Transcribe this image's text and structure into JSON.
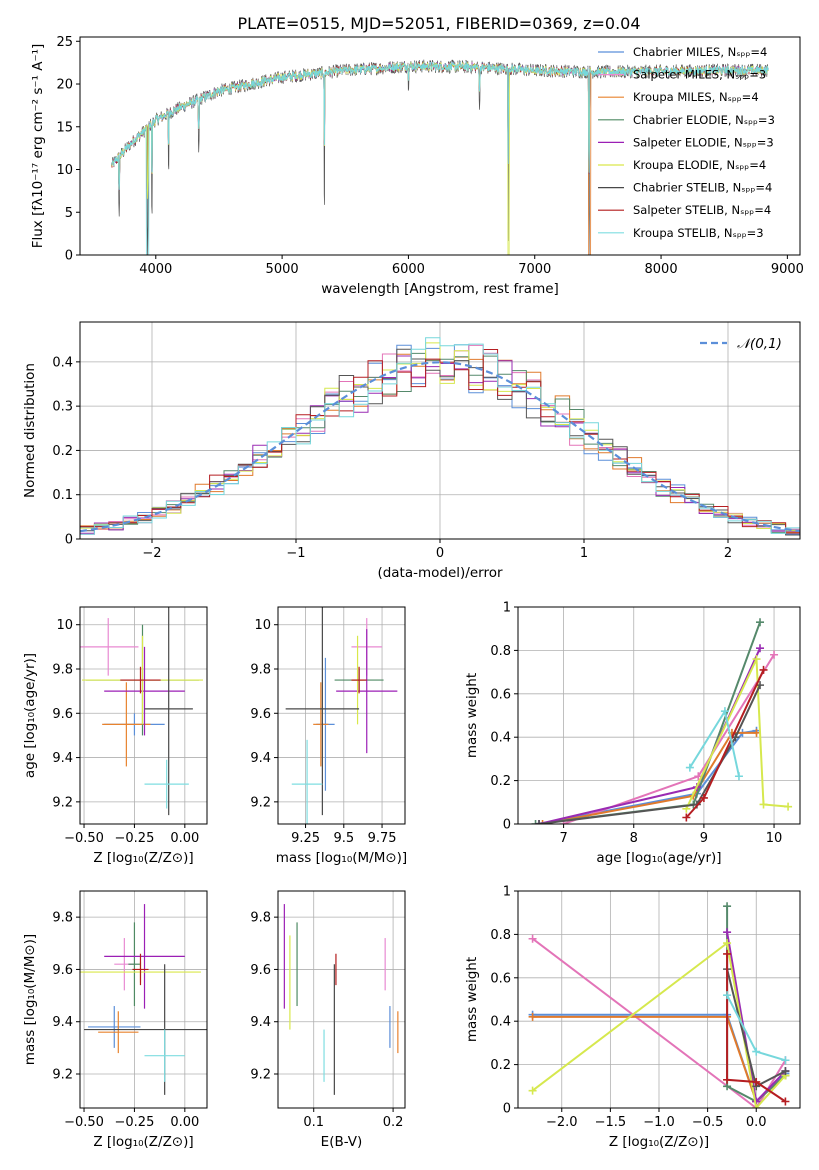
{
  "colors": {
    "chabrier_miles": "#5b8fd9",
    "salpeter_miles": "#e88ad2",
    "kroupa_miles": "#e8832e",
    "chabrier_elodie": "#4f8a63",
    "salpeter_elodie": "#9b1fb5",
    "kroupa_elodie": "#d9e84a",
    "chabrier_stelib": "#484848",
    "salpeter_stelib": "#b31b1b",
    "kroupa_stelib": "#7fdde0",
    "normal": "#5b8fd9",
    "line_chabrier_miles": "#5b8fd9",
    "line_salpeter_miles": "#e374b8",
    "line_kroupa_miles": "#e07a2c",
    "line_chabrier_elodie": "#55896b",
    "line_salpeter_elodie": "#9a2bb3",
    "line_kroupa_elodie": "#d6e84e",
    "line_chabrier_stelib": "#555555",
    "line_salpeter_stelib": "#b51e22",
    "line_kroupa_stelib": "#76d7dc"
  },
  "chart_data": [
    {
      "type": "line",
      "title": "PLATE=0515, MJD=52051, FIBERID=0369, z=0.04",
      "xlabel": "wavelength [Angstrom, rest frame]",
      "ylabel": "Flux [fλ10⁻¹⁷ erg cm⁻² s⁻¹ A⁻¹]",
      "xlim": [
        3400,
        9100
      ],
      "ylim": [
        0,
        25.5
      ],
      "xticks": [
        4000,
        5000,
        6000,
        7000,
        8000,
        9000
      ],
      "yticks": [
        0,
        5,
        10,
        15,
        20,
        25
      ],
      "legend_placement": "upper-right",
      "legend": [
        "Chabrier MILES, Nₛₚₚ=4",
        "Salpeter MILES, Nₛₚₚ=3",
        "Kroupa MILES, Nₛₚₚ=4",
        "Chabrier ELODIE, Nₛₚₚ=3",
        "Salpeter ELODIE, Nₛₚₚ=3",
        "Kroupa ELODIE, Nₛₚₚ=4",
        "Chabrier STELIB, Nₛₚₚ=4",
        "Salpeter STELIB, Nₛₚₚ=4",
        "Kroupa STELIB, Nₛₚₚ=3"
      ],
      "continuum": {
        "x": [
          3650,
          3800,
          4000,
          4200,
          4500,
          5000,
          5500,
          6000,
          6500,
          7000,
          7500,
          8000,
          8500,
          8850
        ],
        "y": [
          10.5,
          13.0,
          15.8,
          17.3,
          19.2,
          20.8,
          21.6,
          22.1,
          22.0,
          21.6,
          21.4,
          21.5,
          21.6,
          21.6
        ]
      },
      "features": [
        {
          "x": 3935,
          "y": 0.0
        },
        {
          "x": 3970,
          "y": 4.0
        },
        {
          "x": 3710,
          "y": 4.5
        },
        {
          "x": 4102,
          "y": 9.5
        },
        {
          "x": 4340,
          "y": 12.0
        },
        {
          "x": 5335,
          "y": 4.6
        },
        {
          "x": 6000,
          "y": 19.0
        },
        {
          "x": 6563,
          "y": 17.0
        },
        {
          "x": 6790,
          "y": 0.0
        },
        {
          "x": 7430,
          "y": 0.0
        }
      ]
    },
    {
      "type": "line",
      "xlabel": "(data-model)/error",
      "ylabel": "Normed distribution",
      "xlim": [
        -2.5,
        2.5
      ],
      "ylim": [
        0,
        0.49
      ],
      "xticks": [
        -2,
        -1,
        0,
        1,
        2
      ],
      "yticks": [
        0.0,
        0.1,
        0.2,
        0.3,
        0.4
      ],
      "grid": true,
      "legend_placement": "upper-right",
      "legend": [
        "𝒩(0,1)"
      ],
      "normal": {
        "mean": 0,
        "sigma": 1
      },
      "bin_width": 0.1
    },
    {
      "type": "scatter",
      "xlabel": "Z [log₁₀(Z/Z⊙)]",
      "ylabel": "age  [log₁₀(age/yr)]",
      "xlim": [
        -0.52,
        0.11
      ],
      "ylim": [
        9.1,
        10.08
      ],
      "xticks": [
        -0.5,
        -0.25,
        0.0
      ],
      "xticklabels": [
        "−0.50",
        "−0.25",
        "0.00"
      ],
      "yticks": [
        9.2,
        9.4,
        9.6,
        9.8,
        10.0
      ],
      "grid": true,
      "points": [
        {
          "series": "chabrier_miles",
          "x": -0.25,
          "xerr": 0.15,
          "y": 9.55,
          "yerr": 0.05
        },
        {
          "series": "salpeter_miles",
          "x": -0.38,
          "xerr": 0.15,
          "y": 9.9,
          "yerr": 0.13
        },
        {
          "series": "kroupa_miles",
          "x": -0.29,
          "xerr": 0.12,
          "y": 9.55,
          "yerr": 0.19
        },
        {
          "series": "chabrier_elodie",
          "x": -0.21,
          "xerr": 0.28,
          "y": 9.75,
          "yerr": 0.25
        },
        {
          "series": "salpeter_elodie",
          "x": -0.2,
          "xerr": 0.2,
          "y": 9.7,
          "yerr": 0.2
        },
        {
          "series": "kroupa_elodie",
          "x": -0.21,
          "xerr": 0.3,
          "y": 9.75,
          "yerr": 0.2
        },
        {
          "series": "chabrier_stelib",
          "x": -0.08,
          "xerr": 0.12,
          "y": 9.62,
          "yerr": 0.48
        },
        {
          "series": "salpeter_stelib",
          "x": -0.22,
          "xerr": 0.1,
          "y": 9.75,
          "yerr": 0.06
        },
        {
          "series": "kroupa_stelib",
          "x": -0.09,
          "xerr": 0.11,
          "y": 9.28,
          "yerr": 0.11
        }
      ]
    },
    {
      "type": "scatter",
      "xlabel": "mass [log₁₀(M/M⊙)]",
      "xlim": [
        9.07,
        9.9
      ],
      "ylim": [
        9.1,
        10.08
      ],
      "xticks": [
        9.25,
        9.5,
        9.75
      ],
      "yticks": [
        9.2,
        9.4,
        9.6,
        9.8,
        10.0
      ],
      "grid": true,
      "points": [
        {
          "series": "chabrier_miles",
          "x": 9.38,
          "xerr": 0.06,
          "y": 9.55,
          "yerr": 0.3
        },
        {
          "series": "salpeter_miles",
          "x": 9.65,
          "xerr": 0.1,
          "y": 9.9,
          "yerr": 0.13
        },
        {
          "series": "kroupa_miles",
          "x": 9.35,
          "xerr": 0.05,
          "y": 9.55,
          "yerr": 0.19
        },
        {
          "series": "chabrier_elodie",
          "x": 9.6,
          "xerr": 0.16,
          "y": 9.75,
          "yerr": 0.05
        },
        {
          "series": "salpeter_elodie",
          "x": 9.65,
          "xerr": 0.2,
          "y": 9.7,
          "yerr": 0.28
        },
        {
          "series": "kroupa_elodie",
          "x": 9.59,
          "xerr": 0.04,
          "y": 9.75,
          "yerr": 0.2
        },
        {
          "series": "chabrier_stelib",
          "x": 9.36,
          "xerr": 0.24,
          "y": 9.62,
          "yerr": 0.48
        },
        {
          "series": "salpeter_stelib",
          "x": 9.6,
          "xerr": 0.05,
          "y": 9.75,
          "yerr": 0.06
        },
        {
          "series": "kroupa_stelib",
          "x": 9.26,
          "xerr": 0.1,
          "y": 9.28,
          "yerr": 0.2
        }
      ]
    },
    {
      "type": "line",
      "xlabel": "age  [log₁₀(age/yr)]",
      "ylabel": "mass weight",
      "xlim": [
        6.35,
        10.37
      ],
      "ylim": [
        0,
        1.0
      ],
      "xticks": [
        7,
        8,
        9,
        10
      ],
      "yticks": [
        0.0,
        0.2,
        0.4,
        0.6,
        0.8,
        1.0
      ],
      "grid": true,
      "series": [
        {
          "key": "chabrier_miles",
          "x": [
            6.65,
            8.9,
            9.55,
            9.75
          ],
          "y": [
            0.0,
            0.14,
            0.42,
            0.43
          ]
        },
        {
          "key": "salpeter_miles",
          "x": [
            7.0,
            8.92,
            10.0
          ],
          "y": [
            0.0,
            0.22,
            0.78
          ]
        },
        {
          "key": "kroupa_miles",
          "x": [
            6.7,
            8.85,
            9.4,
            9.75
          ],
          "y": [
            0.0,
            0.13,
            0.42,
            0.42
          ]
        },
        {
          "key": "chabrier_elodie",
          "x": [
            6.6,
            8.85,
            9.8
          ],
          "y": [
            0.0,
            0.09,
            0.93
          ]
        },
        {
          "key": "salpeter_elodie",
          "x": [
            6.65,
            8.9,
            9.8
          ],
          "y": [
            0.0,
            0.17,
            0.81
          ]
        },
        {
          "key": "kroupa_elodie",
          "x": [
            8.75,
            9.75,
            9.85,
            10.2
          ],
          "y": [
            0.07,
            0.76,
            0.09,
            0.08
          ]
        },
        {
          "key": "chabrier_stelib",
          "x": [
            6.65,
            8.9,
            9.45,
            9.8
          ],
          "y": [
            0.0,
            0.09,
            0.4,
            0.64
          ]
        },
        {
          "key": "salpeter_stelib",
          "x": [
            8.75,
            9.0,
            9.85
          ],
          "y": [
            0.03,
            0.12,
            0.71
          ]
        },
        {
          "key": "kroupa_stelib",
          "x": [
            8.8,
            9.3,
            9.5
          ],
          "y": [
            0.26,
            0.52,
            0.22
          ]
        }
      ]
    },
    {
      "type": "scatter",
      "xlabel": "Z [log₁₀(Z/Z⊙)]",
      "ylabel": "mass [log₁₀(M/M⊙)]",
      "xlim": [
        -0.52,
        0.11
      ],
      "ylim": [
        9.07,
        9.9
      ],
      "xticks": [
        -0.5,
        -0.25,
        0.0
      ],
      "xticklabels": [
        "−0.50",
        "−0.25",
        "0.00"
      ],
      "yticks": [
        9.2,
        9.4,
        9.6,
        9.8
      ],
      "grid": true,
      "points": [
        {
          "series": "chabrier_miles",
          "x": -0.35,
          "xerr": 0.13,
          "y": 9.38,
          "yerr": 0.08
        },
        {
          "series": "salpeter_miles",
          "x": -0.3,
          "xerr": 0.05,
          "y": 9.62,
          "yerr": 0.1
        },
        {
          "series": "kroupa_miles",
          "x": -0.33,
          "xerr": 0.1,
          "y": 9.36,
          "yerr": 0.08
        },
        {
          "series": "chabrier_elodie",
          "x": -0.25,
          "xerr": 0.03,
          "y": 9.62,
          "yerr": 0.16
        },
        {
          "series": "salpeter_elodie",
          "x": -0.2,
          "xerr": 0.2,
          "y": 9.65,
          "yerr": 0.2
        },
        {
          "series": "kroupa_elodie",
          "x": -0.22,
          "xerr": 0.3,
          "y": 9.59,
          "yerr": 0.04
        },
        {
          "series": "chabrier_stelib",
          "x": -0.1,
          "xerr": 0.4,
          "y": 9.37,
          "yerr": 0.25
        },
        {
          "series": "salpeter_stelib",
          "x": -0.22,
          "xerr": 0.04,
          "y": 9.6,
          "yerr": 0.06
        },
        {
          "series": "kroupa_stelib",
          "x": -0.1,
          "xerr": 0.1,
          "y": 9.27,
          "yerr": 0.1
        }
      ]
    },
    {
      "type": "scatter",
      "xlabel": "E(B-V)",
      "xlim": [
        0.055,
        0.215
      ],
      "ylim": [
        9.07,
        9.9
      ],
      "xticks": [
        0.1,
        0.2
      ],
      "yticks": [
        9.2,
        9.4,
        9.6,
        9.8
      ],
      "grid": true,
      "points": [
        {
          "series": "chabrier_miles",
          "x": 0.196,
          "y": 9.38,
          "yerr": 0.08
        },
        {
          "series": "salpeter_miles",
          "x": 0.19,
          "y": 9.62,
          "yerr": 0.1
        },
        {
          "series": "kroupa_miles",
          "x": 0.206,
          "y": 9.36,
          "yerr": 0.08
        },
        {
          "series": "chabrier_elodie",
          "x": 0.079,
          "y": 9.62,
          "yerr": 0.16
        },
        {
          "series": "salpeter_elodie",
          "x": 0.063,
          "y": 9.65,
          "yerr": 0.2
        },
        {
          "series": "kroupa_elodie",
          "x": 0.07,
          "y": 9.55,
          "yerr": 0.18
        },
        {
          "series": "chabrier_stelib",
          "x": 0.126,
          "y": 9.37,
          "yerr": 0.25
        },
        {
          "series": "salpeter_stelib",
          "x": 0.128,
          "y": 9.6,
          "yerr": 0.06
        },
        {
          "series": "kroupa_stelib",
          "x": 0.113,
          "y": 9.27,
          "yerr": 0.1
        }
      ]
    },
    {
      "type": "line",
      "xlabel": "Z [log₁₀(Z/Z⊙)]",
      "ylabel": "mass weight",
      "xlim": [
        -2.45,
        0.45
      ],
      "ylim": [
        0,
        1.0
      ],
      "xticks": [
        -2.0,
        -1.5,
        -1.0,
        -0.5,
        0.0
      ],
      "xticklabels": [
        "−2.0",
        "−1.5",
        "−1.0",
        "−0.5",
        "0.0"
      ],
      "yticks": [
        0.0,
        0.2,
        0.4,
        0.6,
        0.8,
        1.0
      ],
      "grid": true,
      "series": [
        {
          "key": "chabrier_miles",
          "x": [
            -2.3,
            -0.3,
            0.0,
            0.3
          ],
          "y": [
            0.43,
            0.43,
            0.03,
            0.16
          ]
        },
        {
          "key": "salpeter_miles",
          "x": [
            -2.3,
            0.0,
            0.3
          ],
          "y": [
            0.78,
            0.0,
            0.22
          ]
        },
        {
          "key": "kroupa_miles",
          "x": [
            -2.3,
            -0.3,
            0.0,
            0.3
          ],
          "y": [
            0.42,
            0.42,
            0.03,
            0.15
          ]
        },
        {
          "key": "chabrier_elodie",
          "x": [
            -0.3,
            -0.3,
            0.0,
            0.3
          ],
          "y": [
            0.93,
            0.1,
            0.03,
            0.15
          ]
        },
        {
          "key": "salpeter_elodie",
          "x": [
            -0.3,
            0.0,
            0.3
          ],
          "y": [
            0.81,
            0.03,
            0.17
          ]
        },
        {
          "key": "kroupa_elodie",
          "x": [
            -2.3,
            -0.3,
            0.0,
            0.3
          ],
          "y": [
            0.08,
            0.76,
            0.0,
            0.15
          ]
        },
        {
          "key": "chabrier_stelib",
          "x": [
            -0.3,
            0.0,
            0.3
          ],
          "y": [
            0.64,
            0.1,
            0.17
          ]
        },
        {
          "key": "salpeter_stelib",
          "x": [
            -0.3,
            -0.3,
            0.0,
            0.3
          ],
          "y": [
            0.71,
            0.13,
            0.12,
            0.03
          ]
        },
        {
          "key": "kroupa_stelib",
          "x": [
            -0.3,
            0.0,
            0.3
          ],
          "y": [
            0.52,
            0.26,
            0.22
          ]
        }
      ]
    }
  ]
}
